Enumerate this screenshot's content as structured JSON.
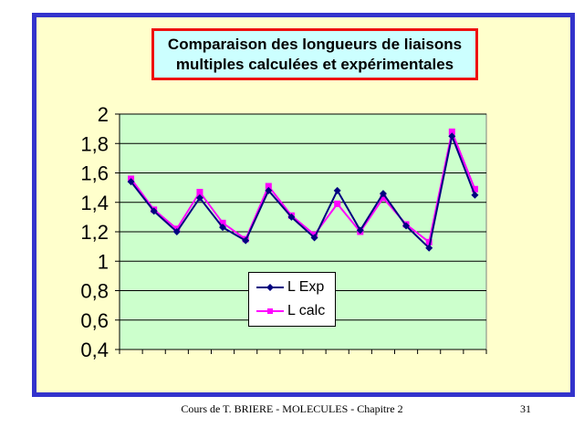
{
  "footer": {
    "text": "Cours de T. BRIERE - MOLECULES - Chapitre 2",
    "page_number": "31"
  },
  "colors": {
    "frame_border": "#3333cc",
    "slide_background": "#ffffcc",
    "title_border": "#ee1111",
    "title_background": "#ccffff",
    "plot_background": "#ccffcc",
    "series_exp": "#000080",
    "series_calc": "#ff00ff"
  },
  "chart_data": {
    "type": "line",
    "title": "Comparaison des longueurs de liaisons multiples calculées et expérimentales",
    "title_lines": [
      "Comparaison des longueurs de liaisons",
      "multiples calculées et expérimentales"
    ],
    "xlabel": "",
    "ylabel": "",
    "ylim": [
      0.4,
      2
    ],
    "yticks": [
      "0,4",
      "0,6",
      "0,8",
      "1",
      "1,2",
      "1,4",
      "1,6",
      "1,8",
      "2"
    ],
    "ytick_values": [
      0.4,
      0.6,
      0.8,
      1.0,
      1.2,
      1.4,
      1.6,
      1.8,
      2.0
    ],
    "grid": true,
    "legend_position": "center-bottom",
    "series": [
      {
        "name": "L Exp",
        "marker": "diamond",
        "values": [
          1.54,
          1.34,
          1.2,
          1.43,
          1.23,
          1.14,
          1.48,
          1.3,
          1.16,
          1.48,
          1.21,
          1.46,
          1.24,
          1.09,
          1.85,
          1.45
        ]
      },
      {
        "name": "L calc",
        "marker": "square",
        "values": [
          1.56,
          1.35,
          1.22,
          1.47,
          1.26,
          1.15,
          1.51,
          1.31,
          1.18,
          1.39,
          1.2,
          1.43,
          1.25,
          1.13,
          1.88,
          1.49
        ]
      }
    ]
  }
}
